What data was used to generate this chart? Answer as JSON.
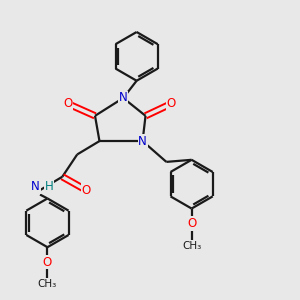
{
  "bg_color": "#e8e8e8",
  "bond_color": "#1a1a1a",
  "N_color": "#0000cd",
  "O_color": "#ff0000",
  "H_color": "#008080",
  "C_color": "#1a1a1a",
  "fig_size": [
    3.0,
    3.0
  ],
  "dpi": 100,
  "xlim": [
    0,
    10
  ],
  "ylim": [
    0,
    10
  ]
}
